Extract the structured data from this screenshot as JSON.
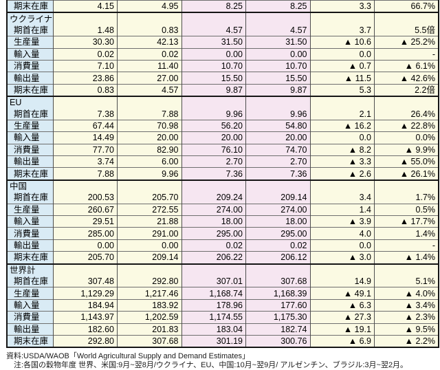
{
  "colors": {
    "label_column_bg": "#d9ebf5",
    "estimate_columns_bg": "#fbfae3",
    "projection_columns_bg": "#f6e6f1",
    "section_border": "#141414",
    "grid_line": "#6e6e6e"
  },
  "table": {
    "rows": [
      {
        "type": "item",
        "label": "期末在庫",
        "values": [
          "4.15",
          "4.95",
          "8.25",
          "8.25",
          "3.3",
          "66.7%"
        ]
      },
      {
        "type": "section",
        "label": "ウクライナ",
        "values": [
          "",
          "",
          "",
          "",
          "",
          ""
        ]
      },
      {
        "type": "item",
        "label": "期首在庫",
        "values": [
          "1.48",
          "0.83",
          "4.57",
          "4.57",
          "3.7",
          "5.5倍"
        ]
      },
      {
        "type": "item",
        "label": "生産量",
        "values": [
          "30.30",
          "42.13",
          "31.50",
          "31.50",
          "▲ 10.6",
          "▲ 25.2%"
        ]
      },
      {
        "type": "item",
        "label": "輸入量",
        "values": [
          "0.02",
          "0.02",
          "0.00",
          "0.00",
          "0.0",
          "-"
        ]
      },
      {
        "type": "item",
        "label": "消費量",
        "values": [
          "7.10",
          "11.40",
          "10.70",
          "10.70",
          "▲ 0.7",
          "▲ 6.1%"
        ]
      },
      {
        "type": "item",
        "label": "輸出量",
        "values": [
          "23.86",
          "27.00",
          "15.50",
          "15.50",
          "▲ 11.5",
          "▲ 42.6%"
        ]
      },
      {
        "type": "item",
        "label": "期末在庫",
        "values": [
          "0.83",
          "4.57",
          "9.87",
          "9.87",
          "5.3",
          "2.2倍"
        ]
      },
      {
        "type": "section",
        "label": "EU",
        "values": [
          "",
          "",
          "",
          "",
          "",
          ""
        ]
      },
      {
        "type": "item",
        "label": "期首在庫",
        "values": [
          "7.38",
          "7.88",
          "9.96",
          "9.96",
          "2.1",
          "26.4%"
        ]
      },
      {
        "type": "item",
        "label": "生産量",
        "values": [
          "67.44",
          "70.98",
          "56.20",
          "54.80",
          "▲ 16.2",
          "▲ 22.8%"
        ]
      },
      {
        "type": "item",
        "label": "輸入量",
        "values": [
          "14.49",
          "20.00",
          "20.00",
          "20.00",
          "0.0",
          "0.0%"
        ]
      },
      {
        "type": "item",
        "label": "消費量",
        "values": [
          "77.70",
          "82.90",
          "76.10",
          "74.70",
          "▲ 8.2",
          "▲ 9.9%"
        ]
      },
      {
        "type": "item",
        "label": "輸出量",
        "values": [
          "3.74",
          "6.00",
          "2.70",
          "2.70",
          "▲ 3.3",
          "▲ 55.0%"
        ]
      },
      {
        "type": "item",
        "label": "期末在庫",
        "values": [
          "7.88",
          "9.96",
          "7.36",
          "7.36",
          "▲ 2.6",
          "▲ 26.1%"
        ]
      },
      {
        "type": "section",
        "label": "中国",
        "values": [
          "",
          "",
          "",
          "",
          "",
          ""
        ]
      },
      {
        "type": "item",
        "label": "期首在庫",
        "values": [
          "200.53",
          "205.70",
          "209.24",
          "209.14",
          "3.4",
          "1.7%"
        ]
      },
      {
        "type": "item",
        "label": "生産量",
        "values": [
          "260.67",
          "272.55",
          "274.00",
          "274.00",
          "1.4",
          "0.5%"
        ]
      },
      {
        "type": "item",
        "label": "輸入量",
        "values": [
          "29.51",
          "21.88",
          "18.00",
          "18.00",
          "▲ 3.9",
          "▲ 17.7%"
        ]
      },
      {
        "type": "item",
        "label": "消費量",
        "values": [
          "285.00",
          "291.00",
          "295.00",
          "295.00",
          "4.0",
          "1.4%"
        ]
      },
      {
        "type": "item",
        "label": "輸出量",
        "values": [
          "0.00",
          "0.00",
          "0.02",
          "0.02",
          "0.0",
          "-"
        ]
      },
      {
        "type": "item",
        "label": "期末在庫",
        "values": [
          "205.70",
          "209.14",
          "206.22",
          "206.12",
          "▲ 3.0",
          "▲ 1.4%"
        ]
      },
      {
        "type": "section",
        "label": "世界計",
        "values": [
          "",
          "",
          "",
          "",
          "",
          ""
        ]
      },
      {
        "type": "item",
        "label": "期首在庫",
        "values": [
          "307.48",
          "292.80",
          "307.01",
          "307.68",
          "14.9",
          "5.1%"
        ]
      },
      {
        "type": "item",
        "label": "生産量",
        "values": [
          "1,129.29",
          "1,217.46",
          "1,168.74",
          "1,168.39",
          "▲ 49.1",
          "▲ 4.0%"
        ]
      },
      {
        "type": "item",
        "label": "輸入量",
        "values": [
          "184.94",
          "183.92",
          "178.96",
          "177.60",
          "▲ 6.3",
          "▲ 3.4%"
        ]
      },
      {
        "type": "item",
        "label": "消費量",
        "values": [
          "1,143.97",
          "1,202.59",
          "1,174.55",
          "1,175.30",
          "▲ 27.3",
          "▲ 2.3%"
        ]
      },
      {
        "type": "item",
        "label": "輸出量",
        "values": [
          "182.60",
          "201.83",
          "183.04",
          "182.74",
          "▲ 19.1",
          "▲ 9.5%"
        ]
      },
      {
        "type": "item",
        "label": "期末在庫",
        "values": [
          "292.80",
          "307.68",
          "301.19",
          "300.76",
          "▲ 6.9",
          "▲ 2.2%"
        ]
      }
    ]
  },
  "footer": {
    "source": "資料:USDA/WAOB「World Agricultural Supply and Demand Estimates」",
    "note": "注:各国の穀物年度 世界、米国:9月~翌8月/ウクライナ、EU、中国:10月~翌9月/ アルゼンチン、ブラジル:3月~翌2月。"
  }
}
